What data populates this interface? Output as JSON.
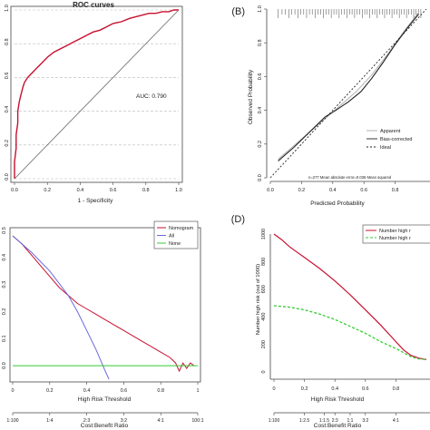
{
  "chart_data": [
    {
      "id": "A",
      "type": "line",
      "title": "ROC curves",
      "xlabel": "1 - Specificity",
      "ylabel": "",
      "xlim": [
        0,
        1
      ],
      "ylim": [
        0,
        1
      ],
      "xticks": [
        "0.0",
        "0.2",
        "0.4",
        "0.6",
        "0.8",
        "1.0"
      ],
      "yticks": [
        "0.0",
        "0.2",
        "0.4",
        "0.6",
        "0.8",
        "1.0"
      ],
      "grid": true,
      "annotation": "AUC: 0.790",
      "series": [
        {
          "x": [
            0,
            0.0,
            0.01,
            0.01,
            0.02,
            0.02,
            0.03,
            0.04,
            0.05,
            0.06,
            0.08,
            0.1,
            0.12,
            0.14,
            0.17,
            0.2,
            0.24,
            0.28,
            0.32,
            0.36,
            0.4,
            0.44,
            0.48,
            0.52,
            0.56,
            0.6,
            0.65,
            0.7,
            0.74,
            0.78,
            0.82,
            0.86,
            0.9,
            0.94,
            0.97,
            1.0
          ],
          "y": [
            0,
            0.1,
            0.18,
            0.26,
            0.33,
            0.4,
            0.46,
            0.5,
            0.54,
            0.57,
            0.6,
            0.62,
            0.64,
            0.66,
            0.69,
            0.72,
            0.75,
            0.77,
            0.79,
            0.81,
            0.83,
            0.85,
            0.87,
            0.88,
            0.9,
            0.92,
            0.93,
            0.95,
            0.96,
            0.97,
            0.98,
            0.98,
            0.99,
            0.99,
            1.0,
            1.0
          ],
          "color": "#c8102e"
        },
        {
          "x": [
            0,
            1
          ],
          "y": [
            0,
            1
          ],
          "color": "#666666"
        }
      ]
    },
    {
      "id": "B",
      "panel_label": "(B)",
      "type": "line",
      "xlabel": "Predicted Probability",
      "ylabel": "Observed Probability",
      "xlim": [
        0,
        1
      ],
      "ylim": [
        0,
        1
      ],
      "xticks": [
        "0.0",
        "0.2",
        "0.4",
        "0.6",
        "0.8"
      ],
      "yticks": [
        "0.0",
        "0.2",
        "0.4",
        "0.6",
        "0.8",
        "1.0"
      ],
      "legend": [
        "Apparent",
        "Bias-corrected",
        "Ideal"
      ],
      "footer_text": "n=277    Mean absolute error=0.036    Mean squared",
      "series": [
        {
          "name": "Apparent",
          "x": [
            0.05,
            0.15,
            0.25,
            0.35,
            0.45,
            0.55,
            0.65,
            0.75,
            0.85,
            0.95
          ],
          "y": [
            0.11,
            0.19,
            0.27,
            0.35,
            0.43,
            0.51,
            0.61,
            0.73,
            0.86,
            0.98
          ],
          "color": "#aaaaaa"
        },
        {
          "name": "Bias-corrected",
          "x": [
            0.05,
            0.15,
            0.25,
            0.35,
            0.42,
            0.5,
            0.58,
            0.65,
            0.72,
            0.8,
            0.88,
            0.95
          ],
          "y": [
            0.1,
            0.18,
            0.27,
            0.36,
            0.4,
            0.45,
            0.51,
            0.59,
            0.68,
            0.79,
            0.89,
            0.97
          ],
          "color": "#222222"
        },
        {
          "name": "Ideal",
          "x": [
            0,
            1
          ],
          "y": [
            0,
            1
          ],
          "color": "#222222"
        }
      ]
    },
    {
      "id": "C",
      "type": "line",
      "xlabel": "High Risk Threshold",
      "ylabel": "",
      "xlim": [
        0,
        1
      ],
      "ylim": [
        -0.05,
        0.5
      ],
      "xticks": [
        "0",
        "0.2",
        "0.4",
        "0.6",
        "0.8",
        "1"
      ],
      "yticks": [
        "0.0",
        "0.1",
        "0.2",
        "0.3",
        "0.4",
        "0.5"
      ],
      "x2label": "Cost:Benefit Ratio",
      "x2ticks": [
        "1:100",
        "1:4",
        "2:3",
        "3:2",
        "4:1",
        "100:1"
      ],
      "legend": [
        "Nomogram",
        "All",
        "None"
      ],
      "series": [
        {
          "name": "Nomogram",
          "x": [
            0,
            0.05,
            0.1,
            0.15,
            0.2,
            0.25,
            0.3,
            0.35,
            0.4,
            0.45,
            0.5,
            0.55,
            0.6,
            0.65,
            0.7,
            0.75,
            0.8,
            0.85,
            0.88,
            0.9,
            0.92,
            0.94,
            0.96,
            0.98
          ],
          "y": [
            0.48,
            0.45,
            0.41,
            0.37,
            0.33,
            0.29,
            0.26,
            0.23,
            0.21,
            0.19,
            0.17,
            0.15,
            0.13,
            0.11,
            0.09,
            0.07,
            0.05,
            0.03,
            0.01,
            -0.02,
            0.01,
            -0.01,
            0.01,
            0.0
          ],
          "color": "#c8102e"
        },
        {
          "name": "All",
          "x": [
            0,
            0.1,
            0.2,
            0.3,
            0.35,
            0.4,
            0.45,
            0.5,
            0.52
          ],
          "y": [
            0.48,
            0.42,
            0.35,
            0.26,
            0.2,
            0.13,
            0.06,
            -0.02,
            -0.05
          ],
          "color": "#6a6adf"
        },
        {
          "name": "None",
          "x": [
            0,
            1
          ],
          "y": [
            0,
            0
          ],
          "color": "#33cc33"
        }
      ]
    },
    {
      "id": "D",
      "panel_label": "(D)",
      "type": "line",
      "xlabel": "High Risk Threshold",
      "ylabel": "Number high risk (out of 1000)",
      "xlim": [
        0,
        1
      ],
      "ylim": [
        0,
        1000
      ],
      "xticks": [
        "0",
        "0.2",
        "0.4",
        "0.6",
        "0.8"
      ],
      "yticks": [
        "0",
        "200",
        "400",
        "600",
        "800",
        "1000"
      ],
      "x2label": "Cost:Benefit Ratio",
      "x2ticks": [
        "1:100",
        "1:4",
        "2:3",
        "3:2",
        "4:1"
      ],
      "x2ticks_full": [
        "1:100",
        "1:2.5",
        "1:1.5",
        "2:3",
        "1:1",
        "3:2",
        "4:1"
      ],
      "legend": [
        "Number high risk",
        "Number high risk with event"
      ],
      "legend_visible": [
        "Number high r",
        "Number high r"
      ],
      "series": [
        {
          "name": "Number high risk",
          "x": [
            0,
            0.05,
            0.1,
            0.15,
            0.2,
            0.3,
            0.4,
            0.5,
            0.6,
            0.7,
            0.8,
            0.85,
            0.9,
            0.95,
            1.0
          ],
          "y": [
            1000,
            960,
            910,
            870,
            830,
            750,
            660,
            560,
            450,
            340,
            220,
            160,
            120,
            100,
            90
          ],
          "color": "#c8102e"
        },
        {
          "name": "Number high risk with event",
          "x": [
            0,
            0.1,
            0.2,
            0.3,
            0.4,
            0.5,
            0.6,
            0.7,
            0.8,
            0.85,
            0.9,
            0.95,
            1.0
          ],
          "y": [
            480,
            470,
            450,
            420,
            380,
            330,
            280,
            220,
            170,
            140,
            110,
            95,
            90
          ],
          "color": "#33cc33"
        }
      ]
    }
  ]
}
